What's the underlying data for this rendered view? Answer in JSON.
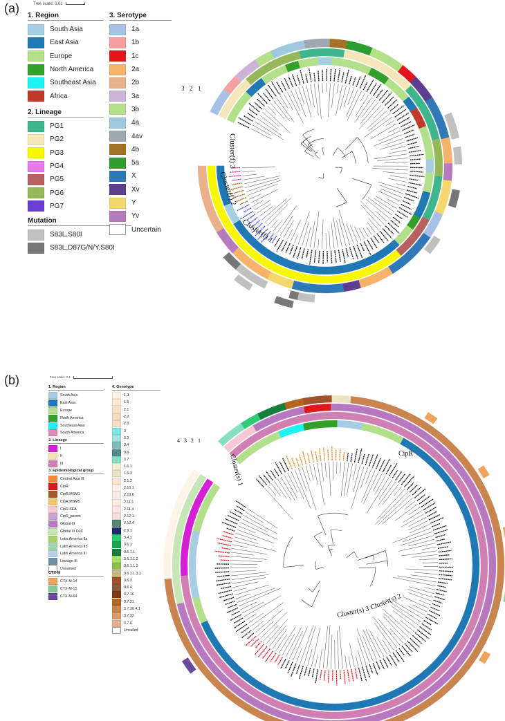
{
  "panel_a": {
    "label": "(a)",
    "tree_scale": "Tree scale: 0.01",
    "legend_region": {
      "title": "1. Region",
      "items": [
        {
          "label": "South Asia",
          "color": "#a6cee3"
        },
        {
          "label": "East Asia",
          "color": "#1f78b4"
        },
        {
          "label": "Europe",
          "color": "#b2df8a"
        },
        {
          "label": "North America",
          "color": "#33a02c"
        },
        {
          "label": "Southeast Asia",
          "color": "#1ef2f2"
        },
        {
          "label": "Africa",
          "color": "#c0392b"
        }
      ]
    },
    "legend_lineage": {
      "title": "2. Lineage",
      "items": [
        {
          "label": "PG1",
          "color": "#3fb58e"
        },
        {
          "label": "PG2",
          "color": "#f6e7b8"
        },
        {
          "label": "PG3",
          "color": "#f7f700"
        },
        {
          "label": "PG4",
          "color": "#e57ae8"
        },
        {
          "label": "PG5",
          "color": "#b66060"
        },
        {
          "label": "PG6",
          "color": "#95b95a"
        },
        {
          "label": "PG7",
          "color": "#6a3fd6"
        }
      ]
    },
    "legend_mutation": {
      "title": "Mutation",
      "items": [
        {
          "label": "S83L,S80I",
          "color": "#c0c0c0"
        },
        {
          "label": "S83L,D87G/N/Y,S80I",
          "color": "#777777"
        }
      ]
    },
    "legend_serotype": {
      "title": "3. Serotype",
      "items": [
        {
          "label": "1a",
          "color": "#a8bfe6"
        },
        {
          "label": "1b",
          "color": "#f4a0a0"
        },
        {
          "label": "1c",
          "color": "#e3171b"
        },
        {
          "label": "2a",
          "color": "#f6b26b"
        },
        {
          "label": "2b",
          "color": "#e9b18a"
        },
        {
          "label": "3a",
          "color": "#cdb3d8"
        },
        {
          "label": "3b",
          "color": "#b5e08a"
        },
        {
          "label": "4a",
          "color": "#9fc8df"
        },
        {
          "label": "4av",
          "color": "#9ea8b0"
        },
        {
          "label": "4b",
          "color": "#a47226"
        },
        {
          "label": "5a",
          "color": "#2e9e2e"
        },
        {
          "label": "X",
          "color": "#2f79b6"
        },
        {
          "label": "Xv",
          "color": "#5c3d8f"
        },
        {
          "label": "Y",
          "color": "#f3d76c"
        },
        {
          "label": "Yv",
          "color": "#b67bbd"
        },
        {
          "label": "Uncertain",
          "color": "#ffffff"
        }
      ]
    },
    "ring_labels": [
      "3",
      "2",
      "1"
    ],
    "cluster_labels": [
      "Cluster(f) 3",
      "Cluster(f) 2",
      "Cluster(f) 1"
    ]
  },
  "panel_b": {
    "label": "(b)",
    "tree_scale": "Tree scale: 0.1",
    "legend_region": {
      "title": "1. Region",
      "items": [
        {
          "label": "South Asia",
          "color": "#a6cee3"
        },
        {
          "label": "East Asia",
          "color": "#1f78b4"
        },
        {
          "label": "Europe",
          "color": "#b2df8a"
        },
        {
          "label": "North America",
          "color": "#33a02c"
        },
        {
          "label": "Southeast Asia",
          "color": "#1ef2f2"
        },
        {
          "label": "South America",
          "color": "#d98ab6"
        }
      ]
    },
    "legend_lineage": {
      "title": "2. Lineage",
      "items": [
        {
          "label": "I",
          "color": "#d51fd5"
        },
        {
          "label": "II",
          "color": "#f6e2b0"
        },
        {
          "label": "III",
          "color": "#d07fb5"
        }
      ]
    },
    "legend_epi": {
      "title": "3. Epidemiological group",
      "items": [
        {
          "label": "Central Asia III",
          "color": "#ef8a3c"
        },
        {
          "label": "CipR",
          "color": "#e3171b"
        },
        {
          "label": "CipR.MSM1",
          "color": "#a8572a"
        },
        {
          "label": "CipR.MSM5",
          "color": "#f2c46b"
        },
        {
          "label": "CipR.SEA",
          "color": "#f8c8d2"
        },
        {
          "label": "CipR_parent",
          "color": "#c9a3d2"
        },
        {
          "label": "Global III",
          "color": "#b878c0"
        },
        {
          "label": "Global III OJC",
          "color": "#c7e6b5"
        },
        {
          "label": "Latin America IIa",
          "color": "#a3d36b"
        },
        {
          "label": "Latin America IIb",
          "color": "#9ed6b4"
        },
        {
          "label": "Latin America III",
          "color": "#b5cfe8"
        },
        {
          "label": "Lineage III",
          "color": "#6f8fa8"
        },
        {
          "label": "Unnamed",
          "color": "#ffffff"
        }
      ]
    },
    "legend_ctx": {
      "title": "CTX-M",
      "items": [
        {
          "label": "CTX-M-14",
          "color": "#f0a35e"
        },
        {
          "label": "CTX-M-15",
          "color": "#86c99d"
        },
        {
          "label": "CTX-M-64",
          "color": "#6a4b9b"
        }
      ]
    },
    "legend_genotype": {
      "title": "4. Genotype",
      "items": [
        {
          "label": "1.3",
          "color": "#fdf3e7"
        },
        {
          "label": "1.5",
          "color": "#fbe8d3"
        },
        {
          "label": "2.1",
          "color": "#fae1c6"
        },
        {
          "label": "2.2",
          "color": "#f7d9bf"
        },
        {
          "label": "2.5",
          "color": "#f5dcc8"
        },
        {
          "label": "3",
          "color": "#7de7e7"
        },
        {
          "label": "3.2",
          "color": "#a4e2dc"
        },
        {
          "label": "3.4",
          "color": "#7fbcbc"
        },
        {
          "label": "3.6",
          "color": "#4e8b8b"
        },
        {
          "label": "3.7",
          "color": "#88dec0"
        },
        {
          "label": "1.6.1",
          "color": "#f3f0d5"
        },
        {
          "label": "1.6.3",
          "color": "#ebe3c4"
        },
        {
          "label": "2.1.2",
          "color": "#f6e6cf"
        },
        {
          "label": "2.10.1",
          "color": "#fdf0e8"
        },
        {
          "label": "2.10.6",
          "color": "#f7ece4"
        },
        {
          "label": "2.11.1",
          "color": "#f9ebe4"
        },
        {
          "label": "2.11.4",
          "color": "#fbe5e6"
        },
        {
          "label": "2.12.1",
          "color": "#f8dde0"
        },
        {
          "label": "2.12.4",
          "color": "#4c8a72"
        },
        {
          "label": "2.9.1",
          "color": "#1a2a6c"
        },
        {
          "label": "3.4.1",
          "color": "#2ecc71"
        },
        {
          "label": "3.6.1",
          "color": "#1aa34a"
        },
        {
          "label": "3.6.1.1",
          "color": "#15803d"
        },
        {
          "label": "3.6.1.1.2",
          "color": "#a6e36b"
        },
        {
          "label": "3.6.1.1.3",
          "color": "#8fbf4a"
        },
        {
          "label": "3.6.1.1.3.1",
          "color": "#c4b97a"
        },
        {
          "label": "3.6.3",
          "color": "#a0522d"
        },
        {
          "label": "3.6.4",
          "color": "#8b5a3c"
        },
        {
          "label": "3.7.16",
          "color": "#7a3b16"
        },
        {
          "label": "3.7.21",
          "color": "#b5651d"
        },
        {
          "label": "3.7.30.4.1",
          "color": "#c98550"
        },
        {
          "label": "3.7.33",
          "color": "#d99b6a"
        },
        {
          "label": "3.7.6",
          "color": "#e6b08a"
        },
        {
          "label": "Uncalled",
          "color": "#ffffff"
        }
      ]
    },
    "ring_labels": [
      "4",
      "3",
      "2",
      "1"
    ],
    "cluster_labels": [
      "Cluster(s) 1",
      "CipR",
      "Cluster(s) 2",
      "Cluster(s) 3"
    ]
  }
}
